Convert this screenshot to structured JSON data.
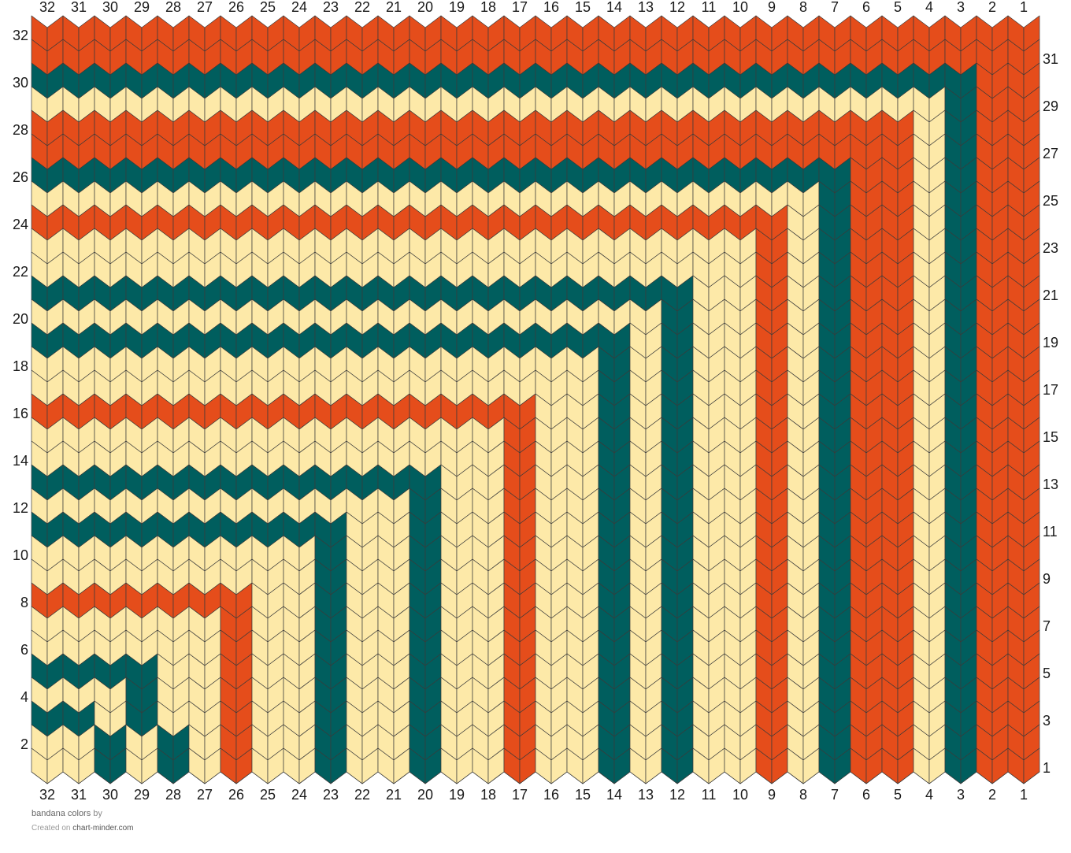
{
  "pattern": {
    "title": "bandana colors",
    "by_label": "by",
    "created_on_label": "Created on",
    "site": "chart-minder.com",
    "columns": 32,
    "rows": 32,
    "colors": {
      "cream": "#fde9a8",
      "orange": "#e54d1b",
      "teal": "#005e5e",
      "outline": "#3a3a3a"
    },
    "column_numbers": [
      "32",
      "31",
      "30",
      "29",
      "28",
      "27",
      "26",
      "25",
      "24",
      "23",
      "22",
      "21",
      "20",
      "19",
      "18",
      "17",
      "16",
      "15",
      "14",
      "13",
      "12",
      "11",
      "10",
      "9",
      "8",
      "7",
      "6",
      "5",
      "4",
      "3",
      "2",
      "1"
    ],
    "left_row_numbers": [
      "32",
      "30",
      "28",
      "26",
      "24",
      "22",
      "20",
      "18",
      "16",
      "14",
      "12",
      "10",
      "8",
      "6",
      "4",
      "2"
    ],
    "right_row_numbers": [
      "31",
      "29",
      "27",
      "25",
      "23",
      "21",
      "19",
      "17",
      "15",
      "13",
      "11",
      "9",
      "7",
      "5",
      "3",
      "1"
    ],
    "corner_colors": [
      "cream",
      "cream",
      "teal",
      "cream",
      "teal",
      "cream",
      "cream",
      "orange",
      "cream",
      "cream",
      "teal",
      "cream",
      "teal",
      "cream",
      "cream",
      "orange",
      "cream",
      "cream",
      "teal",
      "cream",
      "teal",
      "cream",
      "cream",
      "orange",
      "cream",
      "teal",
      "orange",
      "orange",
      "cream",
      "teal",
      "orange",
      "orange"
    ],
    "rows_top_to_bottom": [
      "orange orange orange orange orange orange orange orange orange orange orange orange orange orange orange orange orange orange orange orange orange orange orange orange orange orange orange orange orange orange orange orange",
      "orange orange orange orange orange orange orange orange orange orange orange orange orange orange orange orange orange orange orange orange orange orange orange orange orange orange orange orange orange orange orange orange",
      "teal teal teal teal teal teal teal teal teal teal teal teal teal teal teal teal teal teal teal teal teal teal teal teal teal teal teal teal teal teal orange orange",
      "cream cream cream cream cream cream cream cream cream cream cream cream cream cream cream cream cream cream cream cream cream cream cream cream cream cream cream cream cream teal orange orange",
      "orange orange orange orange orange orange orange orange orange orange orange orange orange orange orange orange orange orange orange orange orange orange orange orange orange orange orange orange cream teal orange orange",
      "orange orange orange orange orange orange orange orange orange orange orange orange orange orange orange orange orange orange orange orange orange orange orange orange orange orange orange orange cream teal orange orange",
      "teal teal teal teal teal teal teal teal teal teal teal teal teal teal teal teal teal teal teal teal teal teal teal teal teal teal orange orange cream teal orange orange",
      "cream cream cream cream cream cream cream cream cream cream cream cream cream cream cream cream cream cream cream cream cream cream cream cream cream teal orange orange cream teal orange orange",
      "orange orange orange orange orange orange orange orange orange orange orange orange orange orange orange orange orange orange orange orange orange orange orange orange cream teal orange orange cream teal orange orange",
      "cream cream cream cream cream cream cream cream cream cream cream cream cream cream cream cream cream cream cream cream cream cream cream orange cream teal orange orange cream teal orange orange",
      "cream cream cream cream cream cream cream cream cream cream cream cream cream cream cream cream cream cream cream cream cream cream cream orange cream teal orange orange cream teal orange orange",
      "teal teal teal teal teal teal teal teal teal teal teal teal teal teal teal teal teal teal teal teal teal cream cream orange cream teal orange orange cream teal orange orange",
      "cream cream cream cream cream cream cream cream cream cream cream cream cream cream cream cream cream cream cream cream teal cream cream orange cream teal orange orange cream teal orange orange",
      "teal teal teal teal teal teal teal teal teal teal teal teal teal teal teal teal teal teal teal cream teal cream cream orange cream teal orange orange cream teal orange orange",
      "cream cream cream cream cream cream cream cream cream cream cream cream cream cream cream cream cream cream teal cream teal cream cream orange cream teal orange orange cream teal orange orange",
      "cream cream cream cream cream cream cream cream cream cream cream cream cream cream cream cream cream cream teal cream teal cream cream orange cream teal orange orange cream teal orange orange",
      "orange orange orange orange orange orange orange orange orange orange orange orange orange orange orange orange cream cream teal cream teal cream cream orange cream teal orange orange cream teal orange orange",
      "cream cream cream cream cream cream cream cream cream cream cream cream cream cream cream orange cream cream teal cream teal cream cream orange cream teal orange orange cream teal orange orange",
      "cream cream cream cream cream cream cream cream cream cream cream cream cream cream cream orange cream cream teal cream teal cream cream orange cream teal orange orange cream teal orange orange",
      "teal teal teal teal teal teal teal teal teal teal teal teal teal cream cream orange cream cream teal cream teal cream cream orange cream teal orange orange cream teal orange orange",
      "cream cream cream cream cream cream cream cream cream cream cream cream teal cream cream orange cream cream teal cream teal cream cream orange cream teal orange orange cream teal orange orange",
      "teal teal teal teal teal teal teal teal teal teal cream cream teal cream cream orange cream cream teal cream teal cream cream orange cream teal orange orange cream teal orange orange",
      "cream cream cream cream cream cream cream cream cream teal cream cream teal cream cream orange cream cream teal cream teal cream cream orange cream teal orange orange cream teal orange orange",
      "cream cream cream cream cream cream cream cream cream teal cream cream teal cream cream orange cream cream teal cream teal cream cream orange cream teal orange orange cream teal orange orange",
      "orange orange orange orange orange orange orange cream cream teal cream cream teal cream cream orange cream cream teal cream teal cream cream orange cream teal orange orange cream teal orange orange",
      "cream cream cream cream cream cream orange cream cream teal cream cream teal cream cream orange cream cream teal cream teal cream cream orange cream teal orange orange cream teal orange orange",
      "cream cream cream cream cream cream orange cream cream teal cream cream teal cream cream orange cream cream teal cream teal cream cream orange cream teal orange orange cream teal orange orange",
      "teal teal teal teal cream cream orange cream cream teal cream cream teal cream cream orange cream cream teal cream teal cream cream orange cream teal orange orange cream teal orange orange",
      "cream cream cream teal cream cream orange cream cream teal cream cream teal cream cream orange cream cream teal cream teal cream cream orange cream teal orange orange cream teal orange orange",
      "teal teal cream teal cream cream orange cream cream teal cream cream teal cream cream orange cream cream teal cream teal cream cream orange cream teal orange orange cream teal orange orange",
      "cream cream teal cream teal cream orange cream cream teal cream cream teal cream cream orange cream cream teal cream teal cream cream orange cream teal orange orange cream teal orange orange",
      "cream cream teal cream teal cream orange cream cream teal cream cream teal cream cream orange cream cream teal cream teal cream cream orange cream teal orange orange cream teal orange orange"
    ]
  }
}
